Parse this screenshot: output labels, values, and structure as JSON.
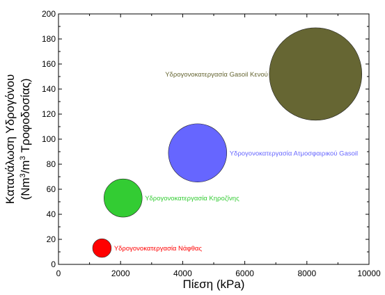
{
  "chart_data": {
    "type": "bubble",
    "xlabel": "Πίεση (kPa)",
    "ylabel_line1": "Κατανάλωση Υδρογόνου",
    "ylabel_line2_pre": "(Nm",
    "ylabel_line2_sup": "3",
    "ylabel_line2_post": "/m",
    "ylabel_line2_sup2": "3",
    "ylabel_line2_end": " Τροφοδοσίας)",
    "xlim": [
      0,
      10000
    ],
    "ylim": [
      0,
      200
    ],
    "xticks": [
      0,
      2000,
      4000,
      6000,
      8000,
      10000
    ],
    "yticks": [
      0,
      20,
      40,
      60,
      80,
      100,
      120,
      140,
      160,
      180,
      200
    ],
    "grid": false,
    "points": [
      {
        "label": "Υδρογονοκατεργασία Νάφθας",
        "x": 1400,
        "y": 13,
        "size_x": 600,
        "color": "#ff0000",
        "label_side": "right"
      },
      {
        "label": "Υδρογονοκατεργασία Κηροζίνης",
        "x": 2080,
        "y": 53,
        "size_x": 1230,
        "color": "#33cc33",
        "label_side": "right"
      },
      {
        "label": "Υδρογονοκατεργασία Ατμοσφαιρικού Gasoil",
        "x": 4480,
        "y": 89,
        "size_x": 1880,
        "color": "#6666ff",
        "label_side": "right"
      },
      {
        "label": "Υδρογονοκατεργασία Gasoil Κενού",
        "x": 8280,
        "y": 152,
        "size_x": 2980,
        "color": "#666633",
        "label_side": "left"
      }
    ]
  }
}
